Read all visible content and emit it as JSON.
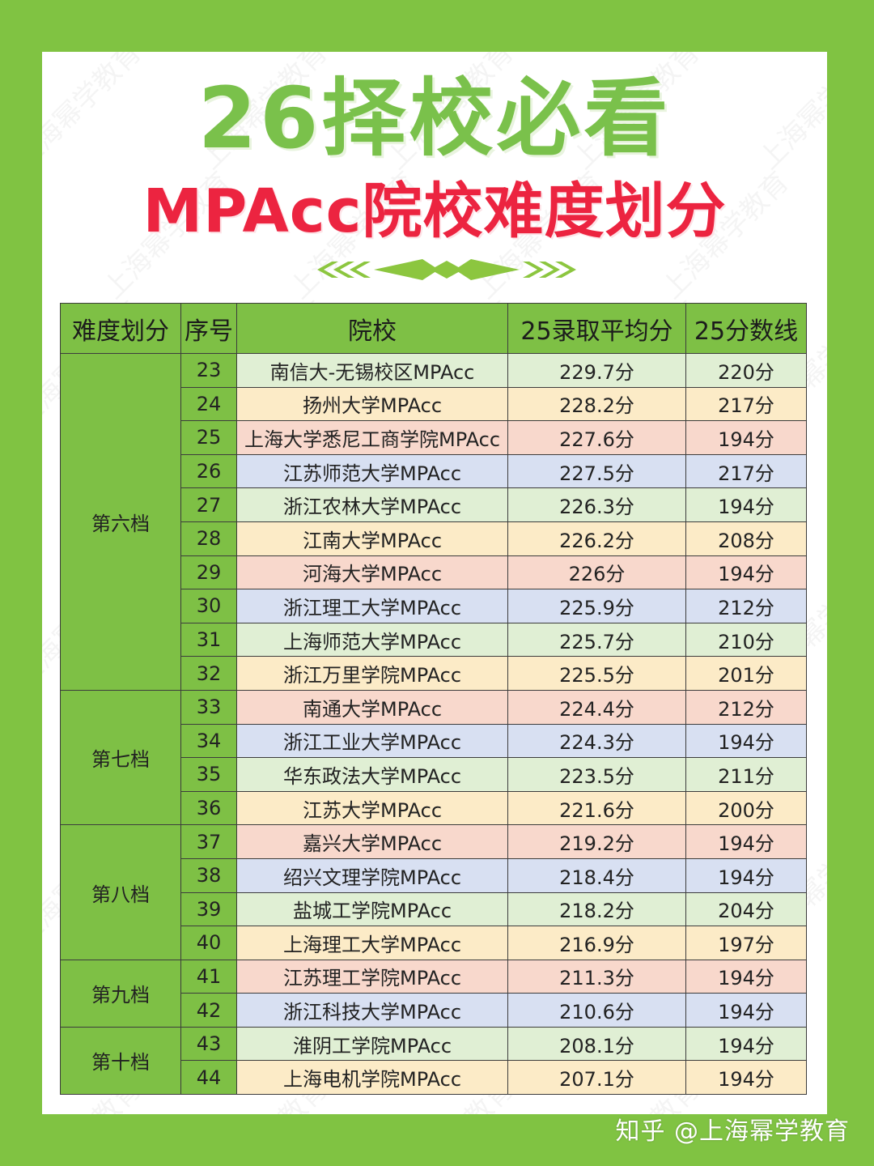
{
  "title": "26择校必看",
  "subtitle": "MPAcc院校难度划分",
  "headers": [
    "难度划分",
    "序号",
    "院校",
    "25录取平均分",
    "25分数线"
  ],
  "watermark_text": "上海幂学教育",
  "footer": "知乎 @上海幂学教育",
  "colors": {
    "background": "#80c342",
    "header_green": "#7ec045",
    "title_green": "#7ac14b",
    "title_red": "#ec2440",
    "row_green": "#e0efd4",
    "row_yellow": "#fcebc7",
    "row_red": "#f8d8cc",
    "row_blue": "#d8e0f2"
  },
  "tiers": [
    {
      "name": "第六档",
      "rows": [
        {
          "seq": "23",
          "school": "南信大-无锡校区MPAcc",
          "avg": "229.7分",
          "line": "220分",
          "color": "g"
        },
        {
          "seq": "24",
          "school": "扬州大学MPAcc",
          "avg": "228.2分",
          "line": "217分",
          "color": "y"
        },
        {
          "seq": "25",
          "school": "上海大学悉尼工商学院MPAcc",
          "avg": "227.6分",
          "line": "194分",
          "color": "r"
        },
        {
          "seq": "26",
          "school": "江苏师范大学MPAcc",
          "avg": "227.5分",
          "line": "217分",
          "color": "b"
        },
        {
          "seq": "27",
          "school": "浙江农林大学MPAcc",
          "avg": "226.3分",
          "line": "194分",
          "color": "g"
        },
        {
          "seq": "28",
          "school": "江南大学MPAcc",
          "avg": "226.2分",
          "line": "208分",
          "color": "y"
        },
        {
          "seq": "29",
          "school": "河海大学MPAcc",
          "avg": "226分",
          "line": "194分",
          "color": "r"
        },
        {
          "seq": "30",
          "school": "浙江理工大学MPAcc",
          "avg": "225.9分",
          "line": "212分",
          "color": "b"
        },
        {
          "seq": "31",
          "school": "上海师范大学MPAcc",
          "avg": "225.7分",
          "line": "210分",
          "color": "g"
        },
        {
          "seq": "32",
          "school": "浙江万里学院MPAcc",
          "avg": "225.5分",
          "line": "201分",
          "color": "y"
        }
      ]
    },
    {
      "name": "第七档",
      "rows": [
        {
          "seq": "33",
          "school": "南通大学MPAcc",
          "avg": "224.4分",
          "line": "212分",
          "color": "r"
        },
        {
          "seq": "34",
          "school": "浙江工业大学MPAcc",
          "avg": "224.3分",
          "line": "194分",
          "color": "b"
        },
        {
          "seq": "35",
          "school": "华东政法大学MPAcc",
          "avg": "223.5分",
          "line": "211分",
          "color": "g"
        },
        {
          "seq": "36",
          "school": "江苏大学MPAcc",
          "avg": "221.6分",
          "line": "200分",
          "color": "y"
        }
      ]
    },
    {
      "name": "第八档",
      "rows": [
        {
          "seq": "37",
          "school": "嘉兴大学MPAcc",
          "avg": "219.2分",
          "line": "194分",
          "color": "r"
        },
        {
          "seq": "38",
          "school": "绍兴文理学院MPAcc",
          "avg": "218.4分",
          "line": "194分",
          "color": "b"
        },
        {
          "seq": "39",
          "school": "盐城工学院MPAcc",
          "avg": "218.2分",
          "line": "204分",
          "color": "g"
        },
        {
          "seq": "40",
          "school": "上海理工大学MPAcc",
          "avg": "216.9分",
          "line": "197分",
          "color": "y"
        }
      ]
    },
    {
      "name": "第九档",
      "rows": [
        {
          "seq": "41",
          "school": "江苏理工学院MPAcc",
          "avg": "211.3分",
          "line": "194分",
          "color": "r"
        },
        {
          "seq": "42",
          "school": "浙江科技大学MPAcc",
          "avg": "210.6分",
          "line": "194分",
          "color": "b"
        }
      ]
    },
    {
      "name": "第十档",
      "rows": [
        {
          "seq": "43",
          "school": "淮阴工学院MPAcc",
          "avg": "208.1分",
          "line": "194分",
          "color": "g"
        },
        {
          "seq": "44",
          "school": "上海电机学院MPAcc",
          "avg": "207.1分",
          "line": "194分",
          "color": "y"
        }
      ]
    }
  ]
}
